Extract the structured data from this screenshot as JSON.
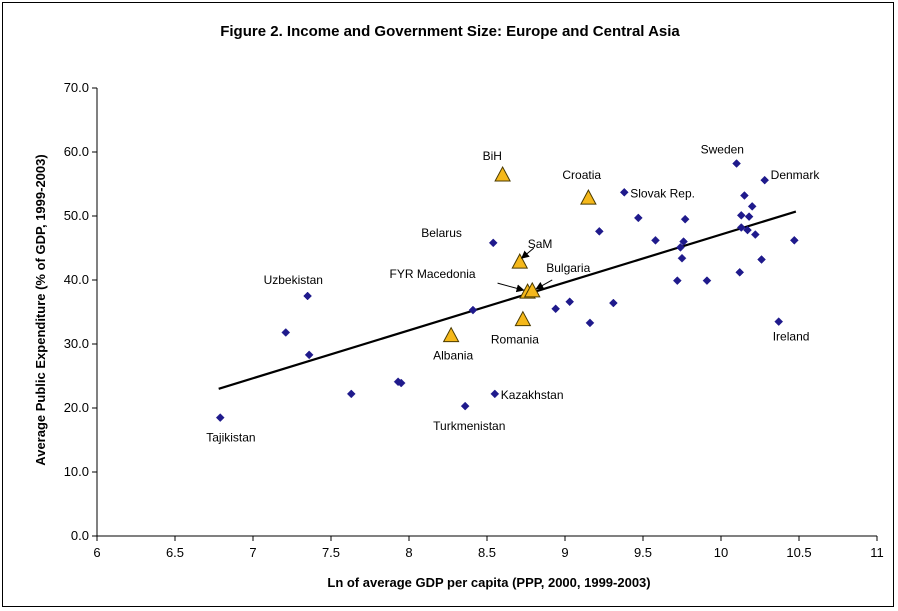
{
  "chart_data": {
    "type": "scatter",
    "title": "Figure 2. Income and Government Size: Europe and Central Asia",
    "xlabel": "Ln of average GDP per capita (PPP, 2000, 1999-2003)",
    "ylabel": "Average Public Expenditure (% of GDP, 1999-2003)",
    "xlim": [
      6,
      11
    ],
    "ylim": [
      0,
      70
    ],
    "x_ticks": [
      "6",
      "6.5",
      "7",
      "7.5",
      "8",
      "8.5",
      "9",
      "9.5",
      "10",
      "10.5",
      "11"
    ],
    "y_ticks": [
      "0.0",
      "10.0",
      "20.0",
      "30.0",
      "40.0",
      "50.0",
      "60.0",
      "70.0"
    ],
    "grid": false,
    "legend": false,
    "colors": {
      "diamond": "#1F1A8C",
      "triangle_fill": "#F5B81A",
      "triangle_stroke": "#4A3A00",
      "trend": "#000000"
    },
    "trendline": {
      "x": [
        6.78,
        10.48
      ],
      "y": [
        23.0,
        50.7
      ]
    },
    "diamonds": [
      {
        "x": 6.79,
        "y": 18.5,
        "label": "Tajikistan"
      },
      {
        "x": 7.21,
        "y": 31.8,
        "label": ""
      },
      {
        "x": 7.35,
        "y": 37.5,
        "label": "Uzbekistan"
      },
      {
        "x": 7.36,
        "y": 28.3,
        "label": ""
      },
      {
        "x": 7.63,
        "y": 22.2,
        "label": ""
      },
      {
        "x": 7.93,
        "y": 24.1,
        "label": ""
      },
      {
        "x": 7.95,
        "y": 23.9,
        "label": ""
      },
      {
        "x": 8.36,
        "y": 20.3,
        "label": "Turkmenistan"
      },
      {
        "x": 8.41,
        "y": 35.3,
        "label": ""
      },
      {
        "x": 8.54,
        "y": 45.8,
        "label": "Belarus"
      },
      {
        "x": 8.55,
        "y": 22.2,
        "label": "Kazakhstan"
      },
      {
        "x": 8.94,
        "y": 35.5,
        "label": ""
      },
      {
        "x": 9.03,
        "y": 36.6,
        "label": ""
      },
      {
        "x": 9.16,
        "y": 33.3,
        "label": ""
      },
      {
        "x": 9.22,
        "y": 47.6,
        "label": ""
      },
      {
        "x": 9.31,
        "y": 36.4,
        "label": ""
      },
      {
        "x": 9.38,
        "y": 53.7,
        "label": "Slovak  Rep."
      },
      {
        "x": 9.47,
        "y": 49.7,
        "label": ""
      },
      {
        "x": 9.58,
        "y": 46.2,
        "label": ""
      },
      {
        "x": 9.72,
        "y": 39.9,
        "label": ""
      },
      {
        "x": 9.74,
        "y": 45.1,
        "label": ""
      },
      {
        "x": 9.75,
        "y": 43.4,
        "label": ""
      },
      {
        "x": 9.76,
        "y": 46.0,
        "label": ""
      },
      {
        "x": 9.77,
        "y": 49.5,
        "label": ""
      },
      {
        "x": 9.91,
        "y": 39.9,
        "label": ""
      },
      {
        "x": 10.1,
        "y": 58.2,
        "label": "Sweden"
      },
      {
        "x": 10.12,
        "y": 41.2,
        "label": ""
      },
      {
        "x": 10.13,
        "y": 48.2,
        "label": ""
      },
      {
        "x": 10.13,
        "y": 50.1,
        "label": ""
      },
      {
        "x": 10.15,
        "y": 53.2,
        "label": ""
      },
      {
        "x": 10.17,
        "y": 47.8,
        "label": ""
      },
      {
        "x": 10.18,
        "y": 49.9,
        "label": ""
      },
      {
        "x": 10.2,
        "y": 51.5,
        "label": ""
      },
      {
        "x": 10.22,
        "y": 47.1,
        "label": ""
      },
      {
        "x": 10.26,
        "y": 43.2,
        "label": ""
      },
      {
        "x": 10.28,
        "y": 55.6,
        "label": "Denmark"
      },
      {
        "x": 10.37,
        "y": 33.5,
        "label": "Ireland"
      },
      {
        "x": 10.47,
        "y": 46.2,
        "label": ""
      }
    ],
    "triangles": [
      {
        "x": 8.27,
        "y": 31.3,
        "label": "Albania"
      },
      {
        "x": 8.6,
        "y": 56.4,
        "label": "BiH"
      },
      {
        "x": 8.71,
        "y": 42.8,
        "label": "SaM"
      },
      {
        "x": 8.73,
        "y": 33.8,
        "label": "Romania"
      },
      {
        "x": 8.76,
        "y": 38.1,
        "label": "FYR Macedonia"
      },
      {
        "x": 8.79,
        "y": 38.3,
        "label": "Bulgaria"
      },
      {
        "x": 9.15,
        "y": 52.8,
        "label": "Croatia"
      }
    ]
  }
}
